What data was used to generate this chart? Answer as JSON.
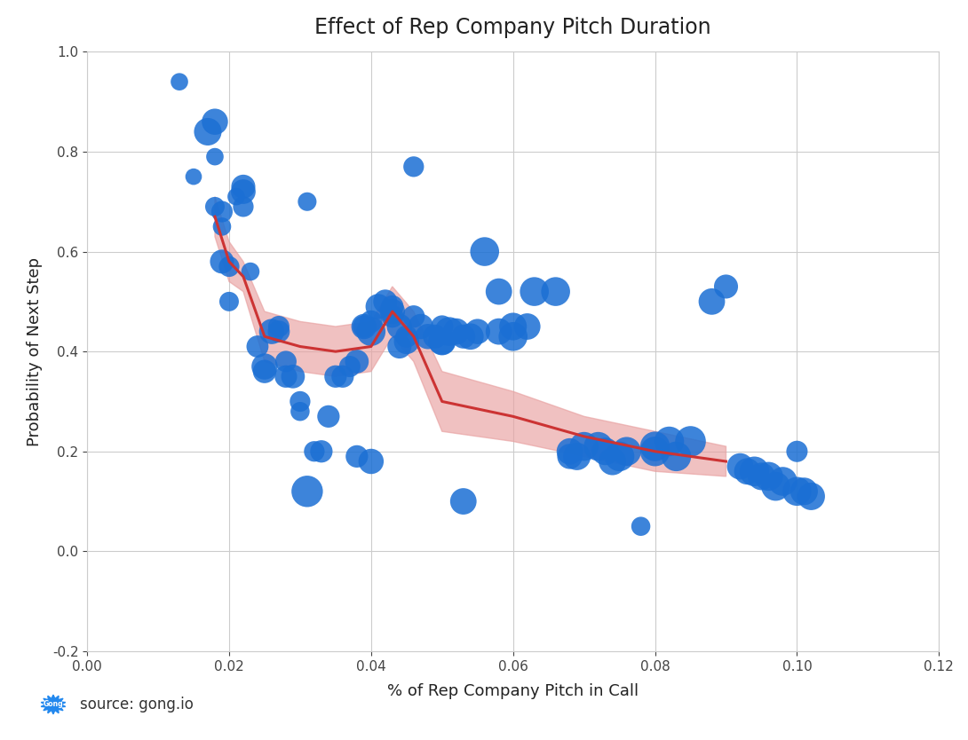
{
  "title": "Effect of Rep Company Pitch Duration",
  "xlabel": "% of Rep Company Pitch in Call",
  "ylabel": "Probability of Next Step",
  "xlim": [
    0.0,
    0.12
  ],
  "ylim": [
    -0.2,
    1.0
  ],
  "xticks": [
    0.0,
    0.02,
    0.04,
    0.06,
    0.08,
    0.1,
    0.12
  ],
  "yticks": [
    -0.2,
    0.0,
    0.2,
    0.4,
    0.6,
    0.8,
    1.0
  ],
  "background_color": "#ffffff",
  "grid_color": "#cccccc",
  "scatter_color": "#1b6fd4",
  "trend_color": "#cc3333",
  "band_color": "#e8a0a0",
  "source_text": "source: gong.io",
  "scatter_points": [
    [
      0.013,
      0.94,
      200
    ],
    [
      0.015,
      0.75,
      180
    ],
    [
      0.017,
      0.84,
      500
    ],
    [
      0.018,
      0.86,
      450
    ],
    [
      0.018,
      0.79,
      200
    ],
    [
      0.018,
      0.69,
      250
    ],
    [
      0.019,
      0.68,
      300
    ],
    [
      0.019,
      0.65,
      220
    ],
    [
      0.019,
      0.58,
      380
    ],
    [
      0.02,
      0.57,
      280
    ],
    [
      0.02,
      0.5,
      250
    ],
    [
      0.021,
      0.71,
      200
    ],
    [
      0.022,
      0.73,
      380
    ],
    [
      0.022,
      0.72,
      400
    ],
    [
      0.022,
      0.69,
      280
    ],
    [
      0.023,
      0.56,
      220
    ],
    [
      0.024,
      0.41,
      320
    ],
    [
      0.025,
      0.37,
      450
    ],
    [
      0.025,
      0.36,
      360
    ],
    [
      0.026,
      0.44,
      420
    ],
    [
      0.027,
      0.45,
      300
    ],
    [
      0.027,
      0.44,
      320
    ],
    [
      0.028,
      0.38,
      300
    ],
    [
      0.028,
      0.35,
      330
    ],
    [
      0.029,
      0.35,
      370
    ],
    [
      0.03,
      0.28,
      240
    ],
    [
      0.03,
      0.3,
      280
    ],
    [
      0.031,
      0.12,
      650
    ],
    [
      0.031,
      0.7,
      230
    ],
    [
      0.032,
      0.2,
      280
    ],
    [
      0.033,
      0.2,
      330
    ],
    [
      0.034,
      0.27,
      330
    ],
    [
      0.035,
      0.35,
      330
    ],
    [
      0.036,
      0.35,
      330
    ],
    [
      0.037,
      0.37,
      300
    ],
    [
      0.038,
      0.38,
      370
    ],
    [
      0.038,
      0.19,
      330
    ],
    [
      0.039,
      0.45,
      420
    ],
    [
      0.039,
      0.45,
      330
    ],
    [
      0.04,
      0.44,
      550
    ],
    [
      0.04,
      0.46,
      330
    ],
    [
      0.04,
      0.18,
      420
    ],
    [
      0.041,
      0.49,
      420
    ],
    [
      0.042,
      0.5,
      380
    ],
    [
      0.043,
      0.49,
      330
    ],
    [
      0.043,
      0.48,
      420
    ],
    [
      0.043,
      0.47,
      330
    ],
    [
      0.044,
      0.45,
      420
    ],
    [
      0.044,
      0.41,
      380
    ],
    [
      0.045,
      0.43,
      330
    ],
    [
      0.045,
      0.42,
      420
    ],
    [
      0.046,
      0.47,
      330
    ],
    [
      0.046,
      0.77,
      280
    ],
    [
      0.047,
      0.45,
      420
    ],
    [
      0.048,
      0.43,
      420
    ],
    [
      0.049,
      0.43,
      380
    ],
    [
      0.05,
      0.42,
      500
    ],
    [
      0.05,
      0.45,
      330
    ],
    [
      0.05,
      0.42,
      460
    ],
    [
      0.051,
      0.44,
      550
    ],
    [
      0.052,
      0.44,
      460
    ],
    [
      0.053,
      0.43,
      380
    ],
    [
      0.053,
      0.1,
      460
    ],
    [
      0.054,
      0.43,
      460
    ],
    [
      0.055,
      0.44,
      420
    ],
    [
      0.056,
      0.6,
      550
    ],
    [
      0.058,
      0.44,
      460
    ],
    [
      0.058,
      0.52,
      460
    ],
    [
      0.06,
      0.43,
      550
    ],
    [
      0.06,
      0.45,
      500
    ],
    [
      0.062,
      0.45,
      460
    ],
    [
      0.063,
      0.52,
      550
    ],
    [
      0.066,
      0.52,
      550
    ],
    [
      0.068,
      0.2,
      460
    ],
    [
      0.068,
      0.19,
      420
    ],
    [
      0.069,
      0.19,
      500
    ],
    [
      0.07,
      0.21,
      550
    ],
    [
      0.072,
      0.21,
      550
    ],
    [
      0.073,
      0.2,
      500
    ],
    [
      0.074,
      0.18,
      500
    ],
    [
      0.075,
      0.19,
      580
    ],
    [
      0.076,
      0.2,
      550
    ],
    [
      0.078,
      0.05,
      240
    ],
    [
      0.08,
      0.2,
      580
    ],
    [
      0.08,
      0.21,
      580
    ],
    [
      0.082,
      0.22,
      580
    ],
    [
      0.083,
      0.19,
      580
    ],
    [
      0.085,
      0.22,
      620
    ],
    [
      0.088,
      0.5,
      460
    ],
    [
      0.09,
      0.53,
      380
    ],
    [
      0.092,
      0.17,
      460
    ],
    [
      0.093,
      0.16,
      460
    ],
    [
      0.094,
      0.16,
      580
    ],
    [
      0.095,
      0.15,
      500
    ],
    [
      0.096,
      0.15,
      550
    ],
    [
      0.097,
      0.13,
      550
    ],
    [
      0.098,
      0.14,
      550
    ],
    [
      0.1,
      0.2,
      300
    ],
    [
      0.1,
      0.12,
      550
    ],
    [
      0.101,
      0.12,
      500
    ],
    [
      0.102,
      0.11,
      500
    ]
  ],
  "trend_line": [
    [
      0.018,
      0.67
    ],
    [
      0.02,
      0.58
    ],
    [
      0.022,
      0.55
    ],
    [
      0.025,
      0.43
    ],
    [
      0.03,
      0.41
    ],
    [
      0.035,
      0.4
    ],
    [
      0.04,
      0.41
    ],
    [
      0.043,
      0.48
    ],
    [
      0.046,
      0.43
    ],
    [
      0.05,
      0.3
    ],
    [
      0.06,
      0.27
    ],
    [
      0.07,
      0.23
    ],
    [
      0.08,
      0.2
    ],
    [
      0.09,
      0.18
    ]
  ],
  "band_upper": [
    [
      0.018,
      0.71
    ],
    [
      0.02,
      0.62
    ],
    [
      0.022,
      0.58
    ],
    [
      0.025,
      0.48
    ],
    [
      0.03,
      0.46
    ],
    [
      0.035,
      0.45
    ],
    [
      0.04,
      0.46
    ],
    [
      0.043,
      0.53
    ],
    [
      0.046,
      0.48
    ],
    [
      0.05,
      0.36
    ],
    [
      0.06,
      0.32
    ],
    [
      0.07,
      0.27
    ],
    [
      0.08,
      0.24
    ],
    [
      0.09,
      0.21
    ]
  ],
  "band_lower": [
    [
      0.018,
      0.63
    ],
    [
      0.02,
      0.54
    ],
    [
      0.022,
      0.52
    ],
    [
      0.025,
      0.38
    ],
    [
      0.03,
      0.36
    ],
    [
      0.035,
      0.35
    ],
    [
      0.04,
      0.36
    ],
    [
      0.043,
      0.43
    ],
    [
      0.046,
      0.38
    ],
    [
      0.05,
      0.24
    ],
    [
      0.06,
      0.22
    ],
    [
      0.07,
      0.19
    ],
    [
      0.08,
      0.16
    ],
    [
      0.09,
      0.15
    ]
  ]
}
